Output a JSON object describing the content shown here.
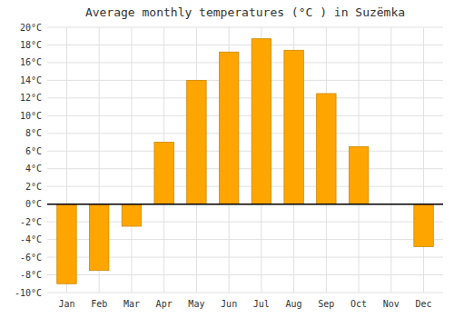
{
  "chart_data": {
    "type": "bar",
    "title": "Average monthly temperatures (°C ) in Suzëmka",
    "categories": [
      "Jan",
      "Feb",
      "Mar",
      "Apr",
      "May",
      "Jun",
      "Jul",
      "Aug",
      "Sep",
      "Oct",
      "Nov",
      "Dec"
    ],
    "values": [
      -9,
      -7.5,
      -2.5,
      7,
      14,
      17.2,
      18.7,
      17.4,
      12.5,
      6.5,
      0,
      -4.8
    ],
    "color": "#FFA500",
    "ylim": [
      -10,
      20
    ],
    "yticks": [
      {
        "value": -10,
        "label": "-10°C"
      },
      {
        "value": -8,
        "label": "-8°C"
      },
      {
        "value": -6,
        "label": "-6°C"
      },
      {
        "value": -4,
        "label": "-4°C"
      },
      {
        "value": -2,
        "label": "-2°C"
      },
      {
        "value": 0,
        "label": "0°C"
      },
      {
        "value": 2,
        "label": "2°C"
      },
      {
        "value": 4,
        "label": "4°C"
      },
      {
        "value": 6,
        "label": "6°C"
      },
      {
        "value": 8,
        "label": "8°C"
      },
      {
        "value": 10,
        "label": "10°C"
      },
      {
        "value": 12,
        "label": "12°C"
      },
      {
        "value": 14,
        "label": "14°C"
      },
      {
        "value": 16,
        "label": "16°C"
      },
      {
        "value": 18,
        "label": "18°C"
      },
      {
        "value": 20,
        "label": "20°C"
      }
    ],
    "grid": true
  }
}
